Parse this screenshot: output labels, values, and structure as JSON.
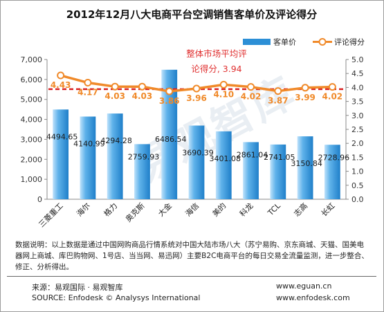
{
  "chart_data": {
    "type": "bar",
    "title": "2012年12月八大电商平台空调销售客单价及评论得分",
    "categories": [
      "三菱重工",
      "海尔",
      "格力",
      "奥克斯",
      "大金",
      "海信",
      "美的",
      "科龙",
      "TCL",
      "志高",
      "长虹"
    ],
    "series": [
      {
        "name": "客单价",
        "type": "bar",
        "axis": "left",
        "values": [
          4494.65,
          4140.99,
          4294.28,
          2759.93,
          6486.54,
          3690.39,
          3401.08,
          2861.04,
          2741.05,
          3150.84,
          2728.96
        ],
        "labels": [
          "4494.65",
          "4140.99",
          "4294.28",
          "2759.93",
          "6486.54",
          "3690.39",
          "3401.08",
          "2861.04",
          "2741.05",
          "3150.84",
          "2728.96"
        ]
      },
      {
        "name": "评论得分",
        "type": "line",
        "axis": "right",
        "values": [
          4.43,
          4.17,
          4.03,
          4.03,
          3.86,
          3.96,
          4.1,
          4.02,
          3.87,
          3.99,
          4.02
        ],
        "labels": [
          "4.43",
          "4.17",
          "4.03",
          "4.03",
          "3.86",
          "3.96",
          "4.10",
          "4.02",
          "3.87",
          "3.99",
          "4.02"
        ]
      }
    ],
    "reference_line": {
      "value": 3.94,
      "axis": "right",
      "label_line1": "整体市场平均评",
      "label_line2": "论得分, 3.94"
    },
    "y_left": {
      "min": 0,
      "max": 7000,
      "ticks": [
        "0",
        "1,000",
        "2,000",
        "3,000",
        "4,000",
        "5,000",
        "6,000",
        "7,000"
      ]
    },
    "y_right": {
      "min": 0,
      "max": 5,
      "ticks": [
        "0.0",
        "0.5",
        "1.0",
        "1.5",
        "2.0",
        "2.5",
        "3.0",
        "3.5",
        "4.0",
        "4.5",
        "5.0"
      ]
    },
    "legend_position": "top-right",
    "colors": {
      "bar": "#2c8fd6",
      "bar_light": "#bfe2fb",
      "line": "#f08a2a",
      "line_label": "#f08a2a",
      "reference": "#d92020",
      "reference_label": "#e03030",
      "axis_text": "#333333"
    }
  },
  "note": "数据说明：以上数据是通过中国网购商品行情系统对中国大陆市场八大（苏宁易购、京东商城、天猫、国美电器网上商城、库巴购物网、1号店、当当网、易迅网）主要B2C电商平台的每日交易全流量监测，进一步整合、修正、分析得出。",
  "footer": {
    "source_cn": "来源：易观国际 · 易观智库",
    "source_en": "SOURCE:  Enfodesk © Analysys International",
    "site_1": "www.eguan.cn",
    "site_2": "www.enfodesk.com"
  },
  "watermark": "易观智库"
}
